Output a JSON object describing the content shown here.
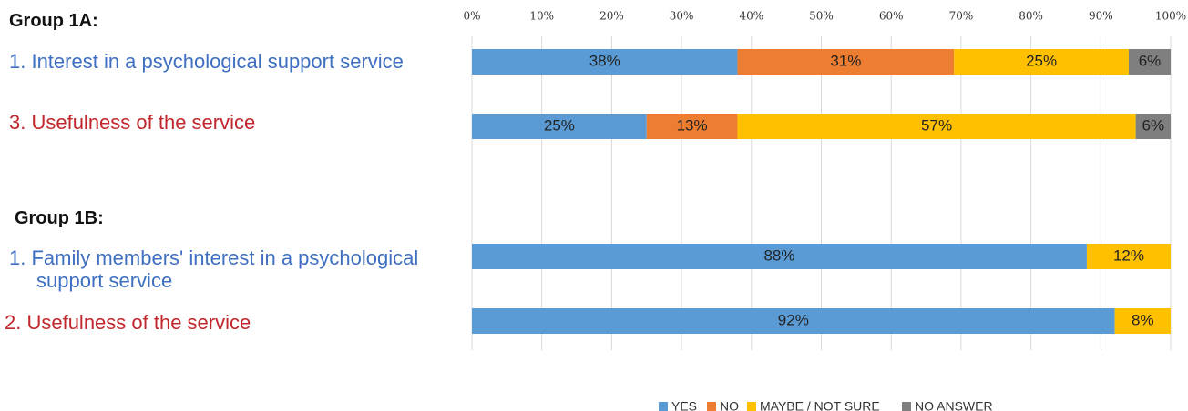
{
  "chart_data": {
    "type": "stacked_barh",
    "groups": [
      "Group 1A:",
      "Group 1B:"
    ],
    "categories": [
      "1. Interest in a psychological support service",
      "3. Usefulness of the service",
      "1. Family members' interest in a psychological support service",
      "2. Usefulness of the service"
    ],
    "category_colors": [
      "#3f6fc1",
      "#c0282d",
      "#3f6fc1",
      "#c0282d"
    ],
    "series": [
      {
        "name": "YES",
        "color": "#5b9bd5",
        "values": [
          38,
          25,
          88,
          92
        ],
        "value_labels": [
          "38%",
          "25%",
          "88%",
          "92%"
        ]
      },
      {
        "name": "NO",
        "color": "#ed7d31",
        "values": [
          31,
          13,
          null,
          null
        ],
        "value_labels": [
          "31%",
          "13%",
          null,
          null
        ]
      },
      {
        "name": "MAYBE / NOT SURE",
        "color": "#ffc000",
        "values": [
          25,
          57,
          12,
          8
        ],
        "value_labels": [
          "25%",
          "57%",
          "12%",
          "8%"
        ]
      },
      {
        "name": "NO ANSWER",
        "color": "#7f7f7f",
        "values": [
          6,
          6,
          null,
          null
        ],
        "value_labels": [
          "6%",
          "6%",
          null,
          null
        ]
      }
    ],
    "xlim": [
      0,
      100
    ],
    "xticks": [
      {
        "value": 0,
        "label": "0%"
      },
      {
        "value": 10,
        "label": "10%"
      },
      {
        "value": 20,
        "label": "20%"
      },
      {
        "value": 30,
        "label": "30%"
      },
      {
        "value": 40,
        "label": "40%"
      },
      {
        "value": 50,
        "label": "50%"
      },
      {
        "value": 60,
        "label": "60%"
      },
      {
        "value": 70,
        "label": "70%"
      },
      {
        "value": 80,
        "label": "80%"
      },
      {
        "value": 90,
        "label": "90%"
      },
      {
        "value": 100,
        "label": "100%"
      }
    ],
    "grid": true,
    "legend": "bottom"
  }
}
